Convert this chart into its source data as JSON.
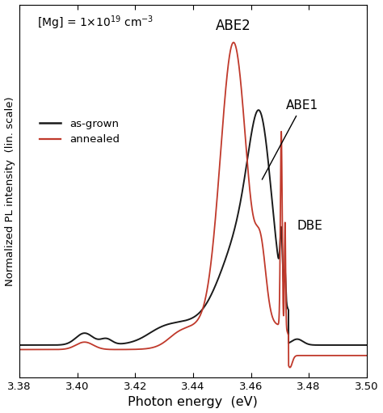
{
  "xlim": [
    3.38,
    3.5
  ],
  "ylim": [
    -0.06,
    1.12
  ],
  "xlabel": "Photon energy  (eV)",
  "ylabel": "Normalized PL intensity  (lin. scale)",
  "label_asgrown": "as-grown",
  "label_annealed": "annealed",
  "color_asgrown": "#1a1a1a",
  "color_annealed": "#c0392b",
  "annotation_ABE2": "ABE2",
  "annotation_ABE1": "ABE1",
  "annotation_DBE": "DBE",
  "xticks": [
    3.38,
    3.4,
    3.42,
    3.44,
    3.46,
    3.48,
    3.5
  ],
  "background_color": "#ffffff",
  "lw_asgrown": 1.4,
  "lw_annealed": 1.3
}
